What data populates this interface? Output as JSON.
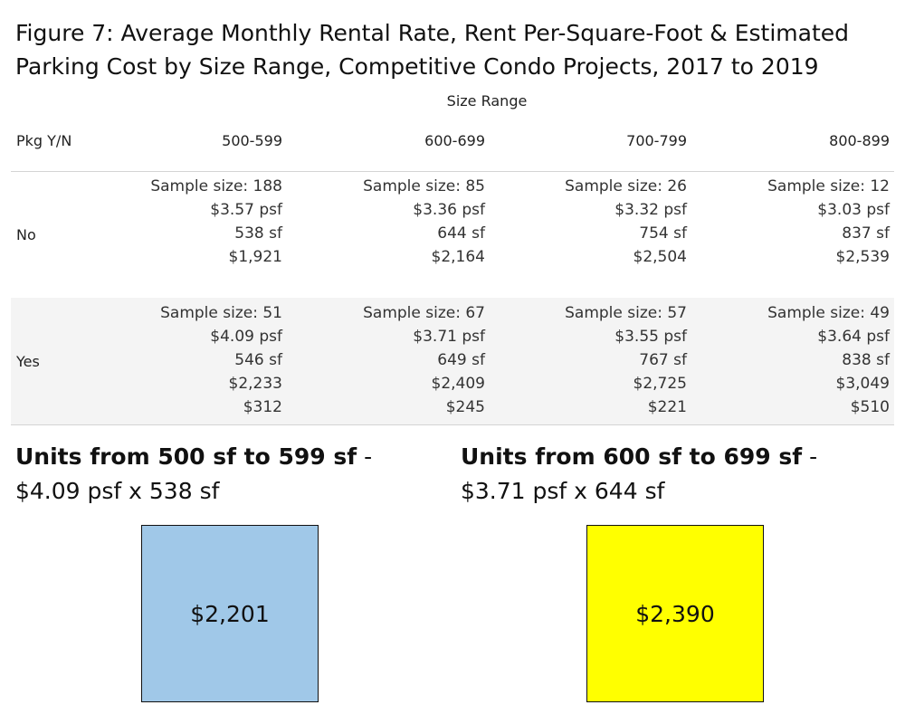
{
  "title": "Figure 7: Average Monthly Rental Rate, Rent Per-Square-Foot & Estimated Parking Cost by Size Range, Competitive Condo Projects, 2017 to 2019",
  "column_group_label": "Size Range",
  "row_header_label": "Pkg Y/N",
  "columns": [
    "500-599",
    "600-699",
    "700-799",
    "800-899"
  ],
  "rows": [
    {
      "label": "No",
      "cells": [
        [
          "Sample size: 188",
          "$3.57 psf",
          "538 sf",
          "$1,921"
        ],
        [
          "Sample size: 85",
          "$3.36 psf",
          "644 sf",
          "$2,164"
        ],
        [
          "Sample size: 26",
          "$3.32 psf",
          "754 sf",
          "$2,504"
        ],
        [
          "Sample size: 12",
          "$3.03 psf",
          "837 sf",
          "$2,539"
        ]
      ]
    },
    {
      "label": "Yes",
      "cells": [
        [
          "Sample size: 51",
          "$4.09 psf",
          "546 sf",
          "$2,233",
          "$312"
        ],
        [
          "Sample size: 67",
          "$3.71 psf",
          "649 sf",
          "$2,409",
          "$245"
        ],
        [
          "Sample size: 57",
          "$3.55 psf",
          "767 sf",
          "$2,725",
          "$221"
        ],
        [
          "Sample size: 49",
          "$3.64 psf",
          "838 sf",
          "$3,049",
          "$510"
        ]
      ]
    }
  ],
  "cards": [
    {
      "bold": "Units from 500 sf to 599 sf",
      "rest": " - $4.09 psf x 538 sf",
      "value": "$2,201",
      "color": "#a0c8e8"
    },
    {
      "bold": "Units from 600 sf to 699 sf",
      "rest": " - $3.71 psf x 644 sf",
      "value": "$2,390",
      "color": "#ffff00"
    }
  ],
  "chart_data": {
    "type": "table",
    "title": "Figure 7: Average Monthly Rental Rate, Rent Per-Square-Foot & Estimated Parking Cost by Size Range, Competitive Condo Projects, 2017 to 2019",
    "column_group": "Size Range",
    "row_header": "Pkg Y/N",
    "columns": [
      "500-599",
      "600-699",
      "700-799",
      "800-899"
    ],
    "data": {
      "No": {
        "sample_size": [
          188,
          85,
          26,
          12
        ],
        "rent_psf": [
          3.57,
          3.36,
          3.32,
          3.03
        ],
        "size_sf": [
          538,
          644,
          754,
          837
        ],
        "monthly_rent": [
          1921,
          2164,
          2504,
          2539
        ]
      },
      "Yes": {
        "sample_size": [
          51,
          67,
          57,
          49
        ],
        "rent_psf": [
          4.09,
          3.71,
          3.55,
          3.64
        ],
        "size_sf": [
          546,
          649,
          767,
          838
        ],
        "monthly_rent": [
          2233,
          2409,
          2725,
          3049
        ],
        "parking_cost": [
          312,
          245,
          221,
          510
        ]
      }
    },
    "cards": [
      {
        "label": "Units from 500 sf to 599 sf - $4.09 psf x 538 sf",
        "value": 2201
      },
      {
        "label": "Units from 600 sf to 699 sf - $3.71 psf x 644 sf",
        "value": 2390
      }
    ]
  }
}
